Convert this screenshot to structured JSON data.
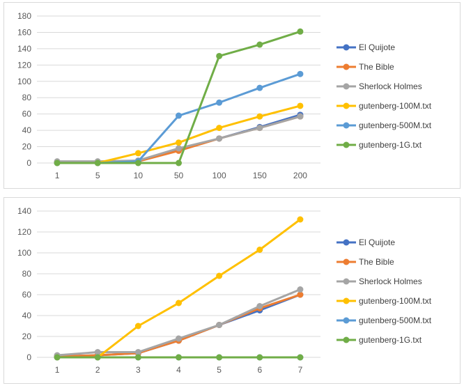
{
  "colors": {
    "El Quijote": "#4472C4",
    "The Bible": "#ED7D31",
    "Sherlock Holmes": "#A5A5A5",
    "gutenberg-100M.txt": "#FFC000",
    "gutenberg-500M.txt": "#5B9BD5",
    "gutenberg-1G.txt": "#70AD47"
  },
  "chart_data": [
    {
      "type": "line",
      "categories": [
        "1",
        "5",
        "10",
        "50",
        "100",
        "150",
        "200"
      ],
      "ylim": [
        0,
        180
      ],
      "yticks": [
        0,
        20,
        40,
        60,
        80,
        100,
        120,
        140,
        160,
        180
      ],
      "grid": true,
      "legend": "right",
      "series": [
        {
          "name": "El Quijote",
          "values": [
            1,
            1,
            2,
            16,
            30,
            44,
            59
          ]
        },
        {
          "name": "The Bible",
          "values": [
            1,
            1,
            2,
            15,
            30,
            43,
            57
          ]
        },
        {
          "name": "Sherlock Holmes",
          "values": [
            2,
            2,
            3,
            18,
            30,
            43,
            57
          ]
        },
        {
          "name": "gutenberg-100M.txt",
          "values": [
            0,
            0,
            12,
            25,
            43,
            57,
            70
          ]
        },
        {
          "name": "gutenberg-500M.txt",
          "values": [
            0,
            0,
            2,
            58,
            74,
            92,
            109
          ]
        },
        {
          "name": "gutenberg-1G.txt",
          "values": [
            0,
            0,
            0,
            0,
            131,
            145,
            161
          ]
        }
      ]
    },
    {
      "type": "line",
      "categories": [
        "1",
        "2",
        "3",
        "4",
        "5",
        "6",
        "7"
      ],
      "ylim": [
        0,
        140
      ],
      "yticks": [
        0,
        20,
        40,
        60,
        80,
        100,
        120,
        140
      ],
      "grid": true,
      "legend": "right",
      "series": [
        {
          "name": "El Quijote",
          "values": [
            1,
            2,
            4,
            16,
            31,
            45,
            60
          ]
        },
        {
          "name": "The Bible",
          "values": [
            1,
            2,
            4,
            16,
            31,
            47,
            60
          ]
        },
        {
          "name": "Sherlock Holmes",
          "values": [
            2,
            5,
            5,
            18,
            31,
            49,
            65
          ]
        },
        {
          "name": "gutenberg-100M.txt",
          "values": [
            0,
            0,
            30,
            52,
            78,
            103,
            132
          ]
        },
        {
          "name": "gutenberg-500M.txt",
          "values": [
            0,
            0,
            0,
            0,
            0,
            0,
            0
          ]
        },
        {
          "name": "gutenberg-1G.txt",
          "values": [
            0,
            0,
            0,
            0,
            0,
            0,
            0
          ]
        }
      ]
    }
  ]
}
